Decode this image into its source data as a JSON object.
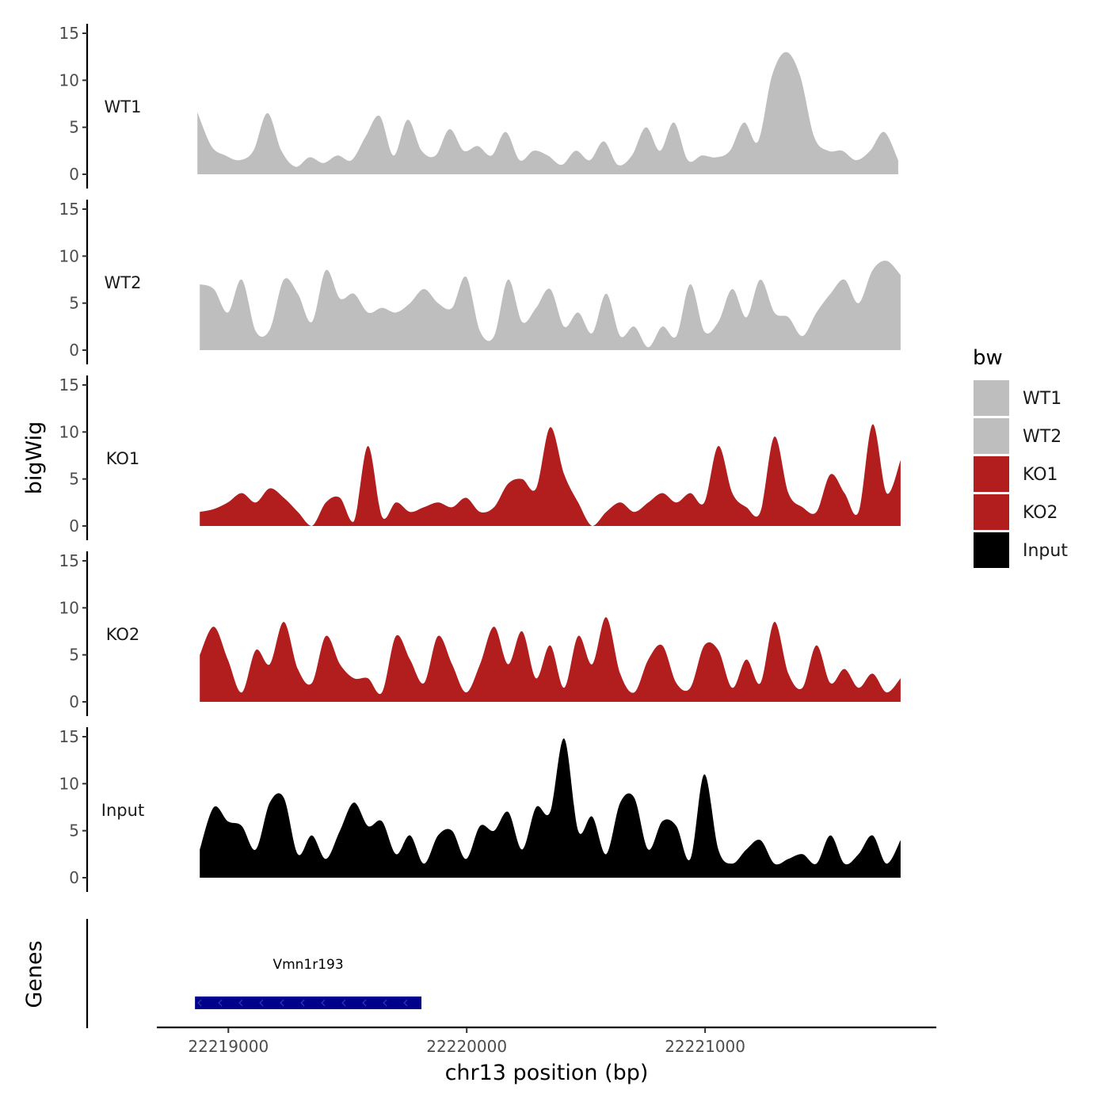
{
  "chart_data": {
    "type": "area",
    "ylabel": "bigWig",
    "xlabel": "chr13 position (bp)",
    "ylim": [
      0,
      15
    ],
    "y_ticks": [
      0,
      5,
      10,
      15
    ],
    "y_tick_labels": [
      "0",
      "5",
      "10",
      "15"
    ],
    "xlim": [
      22218700,
      22221970
    ],
    "x_ticks": [
      22219000,
      22220000,
      22221000
    ],
    "x_tick_labels": [
      "22219000",
      "22220000",
      "22221000"
    ],
    "legend": {
      "title": "bw",
      "position": "right",
      "entries": [
        {
          "label": "WT1",
          "color": "#bebebe"
        },
        {
          "label": "WT2",
          "color": "#bebebe"
        },
        {
          "label": "KO1",
          "color": "#b21e1e"
        },
        {
          "label": "KO2",
          "color": "#b21e1e"
        },
        {
          "label": "Input",
          "color": "#000000"
        }
      ]
    },
    "series": [
      {
        "name": "WT1",
        "color": "#bebebe",
        "start": 22218870,
        "end": 22221810,
        "values": [
          6.6,
          3.0,
          2.0,
          1.5,
          2.5,
          6.5,
          2.5,
          0.8,
          1.8,
          1.2,
          2.0,
          1.5,
          4.0,
          6.2,
          2.0,
          5.8,
          2.5,
          2.0,
          4.8,
          2.5,
          3.0,
          2.0,
          4.5,
          1.5,
          2.5,
          2.0,
          1.0,
          2.5,
          1.5,
          3.5,
          1.0,
          2.0,
          5.0,
          2.5,
          5.5,
          1.5,
          2.0,
          1.8,
          2.5,
          5.5,
          3.5,
          10.5,
          13.0,
          10.5,
          4.0,
          2.5,
          2.5,
          1.5,
          2.5,
          4.5,
          1.5
        ]
      },
      {
        "name": "WT2",
        "color": "#bebebe",
        "start": 22218880,
        "end": 22221820,
        "values": [
          7.0,
          6.5,
          4.0,
          7.5,
          2.0,
          2.2,
          7.5,
          6.0,
          3.0,
          8.5,
          5.5,
          6.0,
          4.0,
          4.5,
          4.0,
          5.0,
          6.5,
          5.0,
          4.5,
          7.8,
          2.0,
          1.5,
          7.5,
          3.0,
          4.5,
          6.5,
          2.5,
          4.0,
          1.8,
          6.0,
          1.5,
          2.5,
          0.3,
          2.5,
          1.5,
          7.0,
          2.0,
          3.0,
          6.5,
          3.5,
          7.5,
          4.0,
          3.5,
          1.5,
          4.0,
          6.0,
          7.5,
          5.0,
          8.5,
          9.5,
          8.0
        ]
      },
      {
        "name": "KO1",
        "color": "#b21e1e",
        "start": 22218880,
        "end": 22221820,
        "values": [
          1.5,
          1.8,
          2.5,
          3.5,
          2.5,
          4.0,
          3.0,
          1.5,
          0.0,
          2.5,
          3.0,
          0.5,
          8.5,
          1.0,
          2.5,
          1.5,
          2.0,
          2.5,
          2.0,
          3.0,
          1.5,
          2.0,
          4.5,
          5.0,
          4.0,
          10.5,
          5.5,
          2.5,
          0.0,
          1.5,
          2.5,
          1.5,
          2.5,
          3.5,
          2.5,
          3.5,
          2.5,
          8.5,
          3.5,
          2.0,
          1.5,
          9.5,
          3.5,
          2.0,
          1.5,
          5.5,
          3.5,
          1.5,
          10.8,
          3.5,
          7.0
        ]
      },
      {
        "name": "KO2",
        "color": "#b21e1e",
        "start": 22218880,
        "end": 22221820,
        "values": [
          5.0,
          8.0,
          4.5,
          1.0,
          5.5,
          4.0,
          8.5,
          3.5,
          2.0,
          7.0,
          4.0,
          2.5,
          2.5,
          1.0,
          7.0,
          4.5,
          2.0,
          7.0,
          4.0,
          1.0,
          4.0,
          8.0,
          4.0,
          7.5,
          2.5,
          6.0,
          1.5,
          7.0,
          4.0,
          9.0,
          3.0,
          1.0,
          4.5,
          6.0,
          2.0,
          1.5,
          6.0,
          5.5,
          1.5,
          4.5,
          2.0,
          8.5,
          3.0,
          1.5,
          6.0,
          2.0,
          3.5,
          1.5,
          3.0,
          1.0,
          2.5
        ]
      },
      {
        "name": "Input",
        "color": "#000000",
        "start": 22218880,
        "end": 22221820,
        "values": [
          3.0,
          7.5,
          6.0,
          5.5,
          3.0,
          8.0,
          8.5,
          2.5,
          4.5,
          2.0,
          5.0,
          8.0,
          5.5,
          6.0,
          2.5,
          4.5,
          1.5,
          4.5,
          5.0,
          2.0,
          5.5,
          5.0,
          7.0,
          3.0,
          7.5,
          7.0,
          14.8,
          5.0,
          6.5,
          2.5,
          8.0,
          8.5,
          3.0,
          6.0,
          5.5,
          2.0,
          11.0,
          3.0,
          1.5,
          3.0,
          4.0,
          1.5,
          2.0,
          2.5,
          1.5,
          4.5,
          1.5,
          2.5,
          4.5,
          1.5,
          4.0
        ]
      }
    ],
    "genes": {
      "ylabel": "Genes",
      "items": [
        {
          "name": "Vmn1r193",
          "start": 22218860,
          "end": 22219810,
          "strand": "-",
          "color": "#00008b"
        }
      ]
    }
  }
}
